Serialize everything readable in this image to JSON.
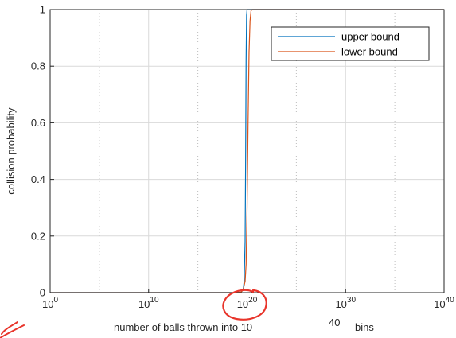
{
  "chart_data": {
    "type": "line",
    "title": "",
    "xlabel": "number of balls thrown into 10",
    "xlabel_superscript": "40",
    "xlabel_suffix": "bins",
    "ylabel": "collision probability",
    "xscale": "log",
    "xlim_exponent": [
      0,
      40
    ],
    "ylim": [
      0,
      1
    ],
    "x_ticks": [
      {
        "base": "10",
        "exp": "0",
        "value": 0
      },
      {
        "base": "10",
        "exp": "10",
        "value": 10
      },
      {
        "base": "10",
        "exp": "20",
        "value": 20
      },
      {
        "base": "10",
        "exp": "30",
        "value": 30
      },
      {
        "base": "10",
        "exp": "40",
        "value": 40
      }
    ],
    "y_ticks": [
      {
        "label": "0",
        "value": 0
      },
      {
        "label": "0.2",
        "value": 0.2
      },
      {
        "label": "0.4",
        "value": 0.4
      },
      {
        "label": "0.6",
        "value": 0.6
      },
      {
        "label": "0.8",
        "value": 0.8
      },
      {
        "label": "1",
        "value": 1
      }
    ],
    "grid": true,
    "legend_position": "top-right",
    "series": [
      {
        "name": "upper bound",
        "color": "#0072BD",
        "x_log10": [
          0,
          10,
          19.0,
          19.4,
          19.6,
          19.7,
          19.8,
          19.85,
          19.9,
          19.95,
          20.0,
          20.1,
          20.2,
          40
        ],
        "y": [
          0,
          0,
          0,
          0.002,
          0.01,
          0.04,
          0.18,
          0.45,
          0.82,
          0.98,
          1,
          1,
          1,
          1
        ]
      },
      {
        "name": "lower bound",
        "color": "#D95319",
        "x_log10": [
          0,
          10,
          19.0,
          19.4,
          19.6,
          19.8,
          19.9,
          20.0,
          20.1,
          20.2,
          20.3,
          20.4,
          20.5,
          40
        ],
        "y": [
          0,
          0,
          0,
          0.002,
          0.01,
          0.04,
          0.1,
          0.3,
          0.6,
          0.85,
          0.96,
          0.995,
          1,
          1
        ]
      }
    ]
  },
  "annotations": {
    "circle_color": "#E8352B"
  }
}
